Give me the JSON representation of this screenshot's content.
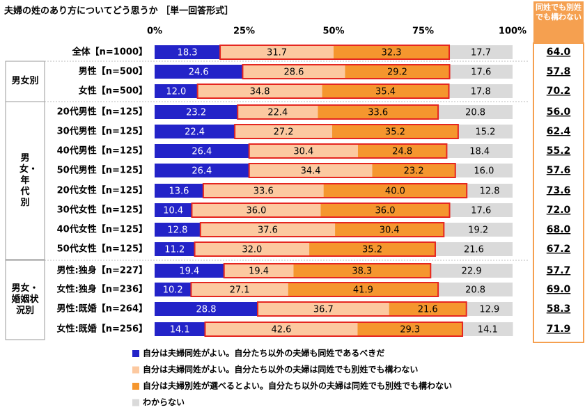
{
  "chart_data": {
    "type": "stacked-bar-horizontal",
    "title": "夫婦の姓のあり方についてどう思うか ［単一回答形式］",
    "categories": [
      "全体【n=1000】",
      "男性【n=500】",
      "女性【n=500】",
      "20代男性【n=125】",
      "30代男性【n=125】",
      "40代男性【n=125】",
      "50代男性【n=125】",
      "20代女性【n=125】",
      "30代女性【n=125】",
      "40代女性【n=125】",
      "50代女性【n=125】",
      "男性:独身【n=227】",
      "女性:独身【n=236】",
      "男性:既婚【n=264】",
      "女性:既婚【n=256】"
    ],
    "groups": [
      "男女別",
      "男女・年代別",
      "男女・婚姻状況別"
    ],
    "xlim": [
      0,
      100
    ],
    "xticks": [
      {
        "value": 0,
        "label": "0%"
      },
      {
        "value": 25,
        "label": "25%"
      },
      {
        "value": 50,
        "label": "50%"
      },
      {
        "value": 75,
        "label": "75%"
      },
      {
        "value": 100,
        "label": "100%"
      }
    ],
    "series": [
      {
        "name": "自分は夫婦同姓がよい。自分たち以外の夫婦も同姓であるべきだ",
        "color": "#2323c8",
        "values": [
          18.3,
          24.6,
          12.0,
          23.2,
          22.4,
          26.4,
          26.4,
          13.6,
          10.4,
          12.8,
          11.2,
          19.4,
          10.2,
          28.8,
          14.1
        ],
        "value_labels": [
          "18.3",
          "24.6",
          "12.0",
          "23.2",
          "22.4",
          "26.4",
          "26.4",
          "13.6",
          "10.4",
          "12.8",
          "11.2",
          "19.4",
          "10.2",
          "28.8",
          "14.1"
        ]
      },
      {
        "name": "自分は夫婦同姓がよい。自分たち以外の夫婦は同姓でも別姓でも構わない",
        "color": "#fcc9a0",
        "values": [
          31.7,
          28.6,
          34.8,
          22.4,
          27.2,
          30.4,
          34.4,
          33.6,
          36.0,
          37.6,
          32.0,
          19.4,
          27.1,
          36.7,
          42.6
        ],
        "value_labels": [
          "31.7",
          "28.6",
          "34.8",
          "22.4",
          "27.2",
          "30.4",
          "34.4",
          "33.6",
          "36.0",
          "37.6",
          "32.0",
          "19.4",
          "27.1",
          "36.7",
          "42.6"
        ]
      },
      {
        "name": "自分は夫婦別姓が選べるとよい。自分たち以外の夫婦は同姓でも別姓でも構わない",
        "color": "#f5962e",
        "values": [
          32.3,
          29.2,
          35.4,
          33.6,
          35.2,
          24.8,
          23.2,
          40.0,
          36.0,
          30.4,
          35.2,
          38.3,
          41.9,
          21.6,
          29.3
        ],
        "value_labels": [
          "32.3",
          "29.2",
          "35.4",
          "33.6",
          "35.2",
          "24.8",
          "23.2",
          "40.0",
          "36.0",
          "30.4",
          "35.2",
          "38.3",
          "41.9",
          "21.6",
          "29.3"
        ]
      },
      {
        "name": "わからない",
        "color": "#dadada",
        "values": [
          17.7,
          17.6,
          17.8,
          20.8,
          15.2,
          18.4,
          16.0,
          12.8,
          17.6,
          19.2,
          21.6,
          22.9,
          20.8,
          12.9,
          14.1
        ],
        "value_labels": [
          "17.7",
          "17.6",
          "17.8",
          "20.8",
          "15.2",
          "18.4",
          "16.0",
          "12.8",
          "17.6",
          "19.2",
          "21.6",
          "22.9",
          "20.8",
          "12.9",
          "14.1"
        ]
      }
    ],
    "combined": {
      "title": "同姓でも別姓でも構わない",
      "color": "#f5a050",
      "values": [
        64.0,
        57.8,
        70.2,
        56.0,
        62.4,
        55.2,
        57.6,
        73.6,
        72.0,
        68.0,
        67.2,
        57.7,
        69.0,
        58.3,
        71.9
      ],
      "value_labels": [
        "64.0",
        "57.8",
        "70.2",
        "56.0",
        "62.4",
        "55.2",
        "57.6",
        "73.6",
        "72.0",
        "68.0",
        "67.2",
        "57.7",
        "69.0",
        "58.3",
        "71.9"
      ]
    }
  }
}
